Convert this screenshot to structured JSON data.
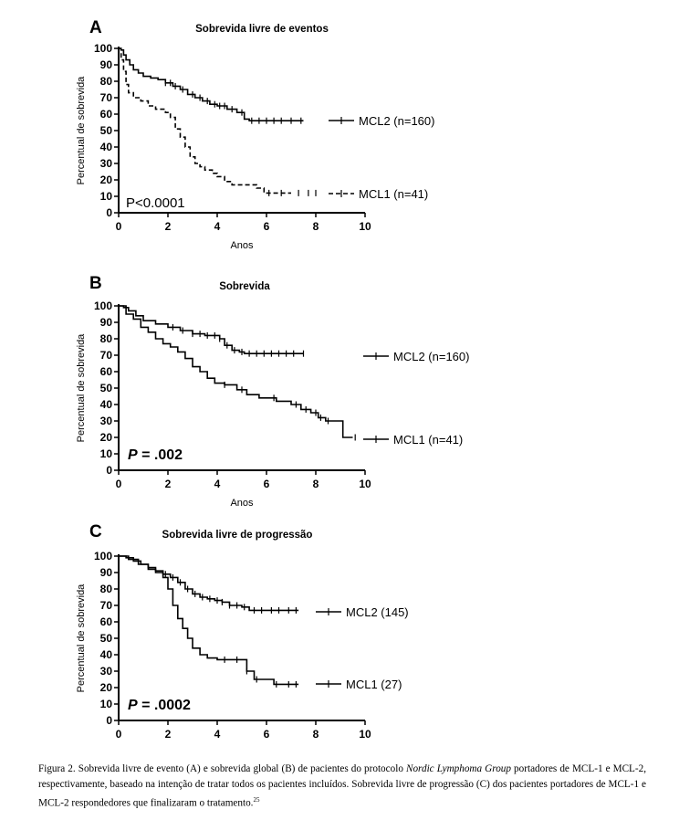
{
  "caption": {
    "part1": "Figura 2. Sobrevida livre de evento (A) e sobrevida global (B) de pacientes do protocolo ",
    "italic": "Nordic Lymphoma Group",
    "part2": " portadores de MCL-1 e MCL-2, respectivamente, baseado na intenção de tratar todos os pacientes incluídos. Sobrevida livre de progressão (C) dos pacientes portadores de MCL-1 e MCL-2 respondedores que finalizaram o tratamento.",
    "ref": "25"
  },
  "chart_data": [
    {
      "type": "line",
      "panel": "A",
      "title": "Sobrevida livre de eventos",
      "xlabel": "Anos",
      "ylabel": "Percentual de sobrevida",
      "xlim": [
        0,
        10
      ],
      "ylim": [
        0,
        100
      ],
      "xticks": [
        0,
        2,
        4,
        6,
        8,
        10
      ],
      "yticks": [
        0,
        10,
        20,
        30,
        40,
        50,
        60,
        70,
        80,
        90,
        100
      ],
      "annotation": "P<0.0001",
      "annotation_style": "plain",
      "series": [
        {
          "name": "MCL2 (n=160)",
          "style": "solid",
          "x": [
            0,
            0.1,
            0.2,
            0.3,
            0.45,
            0.6,
            0.8,
            1.0,
            1.3,
            1.6,
            1.9,
            2.2,
            2.5,
            2.8,
            3.1,
            3.4,
            3.7,
            4.0,
            4.4,
            4.8,
            5.1,
            5.3,
            6.0,
            7.0,
            7.5
          ],
          "y": [
            100,
            99,
            96,
            93,
            90,
            87,
            85,
            83,
            82,
            81,
            79,
            77,
            75,
            72,
            70,
            68,
            66,
            65,
            63,
            61,
            57,
            56,
            56,
            56,
            56
          ],
          "censor_x": [
            1.9,
            2.1,
            2.3,
            2.6,
            3.0,
            3.3,
            3.6,
            3.9,
            4.1,
            4.3,
            4.6,
            5.0,
            5.4,
            5.7,
            6.0,
            6.3,
            6.6,
            7.0,
            7.4
          ]
        },
        {
          "name": "MCL1 (n=41)",
          "style": "dashed",
          "x": [
            0,
            0.1,
            0.2,
            0.3,
            0.4,
            0.6,
            0.9,
            1.2,
            1.5,
            1.9,
            2.1,
            2.3,
            2.5,
            2.7,
            2.9,
            3.1,
            3.3,
            3.5,
            3.8,
            4.0,
            4.3,
            4.6,
            4.9,
            5.4,
            5.6,
            5.9,
            6.5,
            7.0
          ],
          "y": [
            100,
            93,
            86,
            78,
            73,
            70,
            68,
            65,
            63,
            61,
            58,
            51,
            46,
            40,
            34,
            30,
            28,
            26,
            24,
            22,
            19,
            17,
            17,
            17,
            15,
            12,
            12,
            12
          ],
          "censor_x": [
            6.1,
            6.6,
            7.3,
            7.7,
            8.0
          ]
        }
      ]
    },
    {
      "type": "line",
      "panel": "B",
      "title": "Sobrevida",
      "xlabel": "Anos",
      "ylabel": "Percentual de sobrevida",
      "xlim": [
        0,
        10
      ],
      "ylim": [
        0,
        100
      ],
      "xticks": [
        0,
        2,
        4,
        6,
        8,
        10
      ],
      "yticks": [
        0,
        10,
        20,
        30,
        40,
        50,
        60,
        70,
        80,
        90,
        100
      ],
      "annotation": "P = .002",
      "annotation_style": "bold",
      "series": [
        {
          "name": "MCL2 (n=160)",
          "style": "solid",
          "x": [
            0,
            0.2,
            0.4,
            0.7,
            1.0,
            1.5,
            2.0,
            2.5,
            3.0,
            3.5,
            3.8,
            4.1,
            4.3,
            4.6,
            4.9,
            5.1,
            5.5,
            6.5,
            7.5
          ],
          "y": [
            100,
            99,
            97,
            94,
            91,
            89,
            87,
            85,
            83,
            82,
            82,
            80,
            76,
            73,
            72,
            71,
            71,
            71,
            71
          ],
          "censor_x": [
            2.2,
            2.6,
            3.0,
            3.3,
            3.6,
            3.9,
            4.1,
            4.4,
            4.7,
            5.0,
            5.3,
            5.6,
            5.9,
            6.2,
            6.5,
            6.8,
            7.1,
            7.5
          ]
        },
        {
          "name": "MCL1 (n=41)",
          "style": "solid",
          "x": [
            0,
            0.3,
            0.6,
            0.9,
            1.2,
            1.5,
            1.8,
            2.1,
            2.4,
            2.7,
            3.0,
            3.3,
            3.6,
            3.9,
            4.3,
            4.8,
            5.2,
            5.7,
            6.4,
            7.0,
            7.4,
            7.8,
            8.1,
            8.4,
            8.7,
            9.1,
            9.5
          ],
          "y": [
            100,
            95,
            92,
            87,
            84,
            80,
            77,
            75,
            72,
            68,
            63,
            60,
            56,
            53,
            52,
            49,
            46,
            44,
            42,
            40,
            37,
            35,
            32,
            30,
            30,
            20,
            20
          ],
          "censor_x": [
            4.3,
            5.0,
            6.3,
            7.2,
            7.6,
            8.0,
            8.2,
            8.5,
            9.6
          ]
        }
      ]
    },
    {
      "type": "line",
      "panel": "C",
      "title": "Sobrevida livre de progressão",
      "xlabel": "",
      "ylabel": "Percentual de sobrevida",
      "xlim": [
        0,
        10
      ],
      "ylim": [
        0,
        100
      ],
      "xticks": [
        0,
        2,
        4,
        6,
        8,
        10
      ],
      "yticks": [
        0,
        10,
        20,
        30,
        40,
        50,
        60,
        70,
        80,
        90,
        100
      ],
      "annotation": "P = .0002",
      "annotation_style": "bold",
      "series": [
        {
          "name": "MCL2 (145)",
          "style": "solid",
          "x": [
            0,
            0.3,
            0.6,
            0.9,
            1.2,
            1.5,
            1.8,
            2.1,
            2.4,
            2.7,
            3.0,
            3.3,
            3.6,
            3.9,
            4.2,
            4.5,
            4.8,
            5.0,
            5.3,
            5.6,
            6.2,
            7.3
          ],
          "y": [
            100,
            99,
            97,
            95,
            93,
            91,
            89,
            87,
            84,
            80,
            77,
            75,
            74,
            73,
            72,
            70,
            70,
            69,
            67,
            67,
            67,
            67
          ],
          "censor_x": [
            1.9,
            2.2,
            2.5,
            2.8,
            3.1,
            3.4,
            3.7,
            4.0,
            4.2,
            4.5,
            4.8,
            5.1,
            5.5,
            5.8,
            6.2,
            6.5,
            6.9,
            7.2
          ]
        },
        {
          "name": "MCL1 (27)",
          "style": "solid",
          "x": [
            0,
            0.4,
            0.8,
            1.2,
            1.5,
            1.8,
            2.0,
            2.2,
            2.4,
            2.6,
            2.8,
            3.0,
            3.3,
            3.6,
            4.0,
            4.6,
            5.2,
            5.5,
            6.3,
            7.3
          ],
          "y": [
            100,
            98,
            95,
            92,
            90,
            87,
            80,
            70,
            62,
            56,
            50,
            44,
            40,
            38,
            37,
            37,
            30,
            25,
            22,
            22
          ],
          "censor_x": [
            4.3,
            4.8,
            5.2,
            5.6,
            6.4,
            6.9,
            7.2
          ]
        }
      ]
    }
  ]
}
